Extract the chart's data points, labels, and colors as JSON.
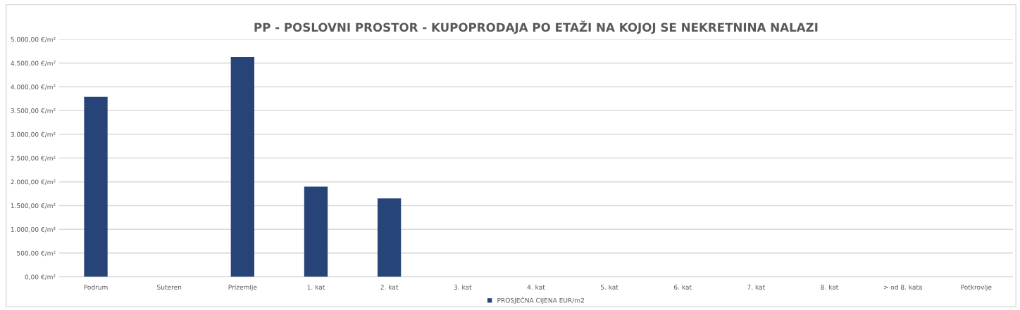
{
  "chart_data": {
    "type": "bar",
    "title": "PP - POSLOVNI PROSTOR - KUPOPRODAJA PO ETAŽI NA KOJOJ SE NEKRETNINA NALAZI",
    "categories": [
      "Podrum",
      "Suteren",
      "Prizemlje",
      "1. kat",
      "2. kat",
      "3. kat",
      "4. kat",
      "5. kat",
      "6. kat",
      "7. kat",
      "8. kat",
      "> od 8. kata",
      "Potkrovlje"
    ],
    "series": [
      {
        "name": "PROSJEČNA CIJENA EUR/m2",
        "color": "#264478",
        "values": [
          3790,
          null,
          4630,
          1900,
          1650,
          null,
          null,
          null,
          null,
          null,
          null,
          null,
          null
        ]
      }
    ],
    "ylim": [
      0,
      5000
    ],
    "yticks": [
      {
        "value": 0,
        "label": "0,00 €/m²"
      },
      {
        "value": 500,
        "label": "500,00 €/m²"
      },
      {
        "value": 1000,
        "label": "1.000,00 €/m²"
      },
      {
        "value": 1500,
        "label": "1.500,00 €/m²"
      },
      {
        "value": 2000,
        "label": "2.000,00 €/m²"
      },
      {
        "value": 2500,
        "label": "2.500,00 €/m²"
      },
      {
        "value": 3000,
        "label": "3.000,00 €/m²"
      },
      {
        "value": 3500,
        "label": "3.500,00 €/m²"
      },
      {
        "value": 4000,
        "label": "4.000,00 €/m²"
      },
      {
        "value": 4500,
        "label": "4.500,00 €/m²"
      },
      {
        "value": 5000,
        "label": "5.000,00 €/m²"
      }
    ],
    "grid": "y",
    "legend": "bottom"
  }
}
